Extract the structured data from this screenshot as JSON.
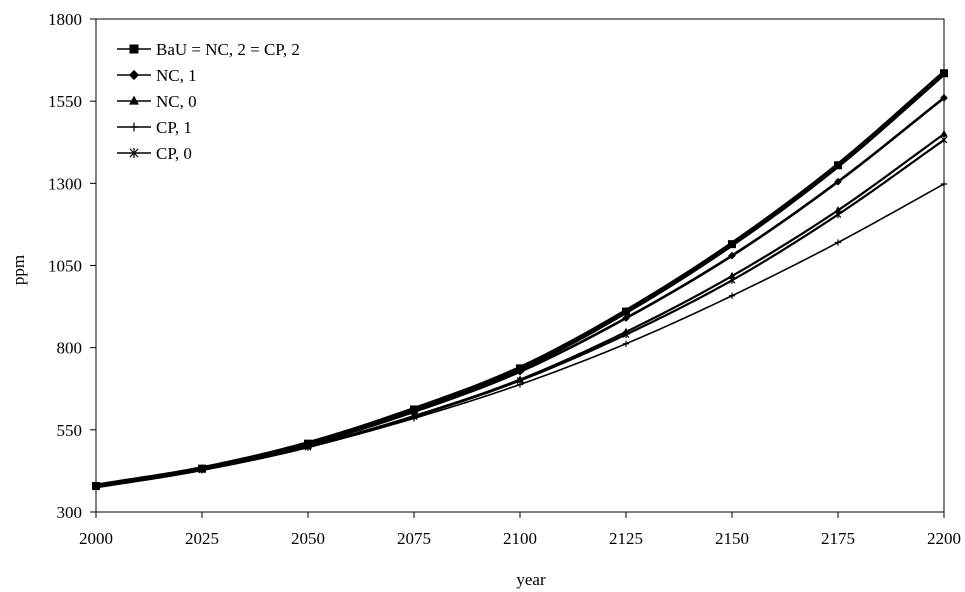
{
  "chart_data": {
    "type": "line",
    "title": "",
    "xlabel": "year",
    "ylabel": "ppm",
    "xlim": [
      2000,
      2200
    ],
    "ylim": [
      300,
      1800
    ],
    "xticks": [
      2000,
      2025,
      2050,
      2075,
      2100,
      2125,
      2150,
      2175,
      2200
    ],
    "yticks": [
      300,
      550,
      800,
      1050,
      1300,
      1550,
      1800
    ],
    "grid": false,
    "legend_position": "top-left",
    "x": [
      2000,
      2025,
      2050,
      2075,
      2100,
      2125,
      2150,
      2175,
      2200
    ],
    "series": [
      {
        "name": "BaU = NC, 2 = CP, 2",
        "marker": "square",
        "color": "#000000",
        "values": [
          379,
          432,
          508,
          612,
          737,
          910,
          1115,
          1355,
          1635
        ]
      },
      {
        "name": "NC, 1",
        "marker": "diamond",
        "color": "#000000",
        "values": [
          379,
          431,
          505,
          605,
          727,
          890,
          1080,
          1305,
          1560
        ]
      },
      {
        "name": "NC, 0",
        "marker": "triangle",
        "color": "#000000",
        "values": [
          379,
          429,
          500,
          592,
          703,
          848,
          1018,
          1218,
          1450
        ]
      },
      {
        "name": "CP, 1",
        "marker": "plus",
        "color": "#000000",
        "values": [
          379,
          428,
          497,
          585,
          688,
          812,
          958,
          1120,
          1298
        ]
      },
      {
        "name": "CP, 0",
        "marker": "star",
        "color": "#000000",
        "values": [
          379,
          428,
          497,
          590,
          700,
          840,
          1005,
          1205,
          1432
        ]
      }
    ]
  }
}
